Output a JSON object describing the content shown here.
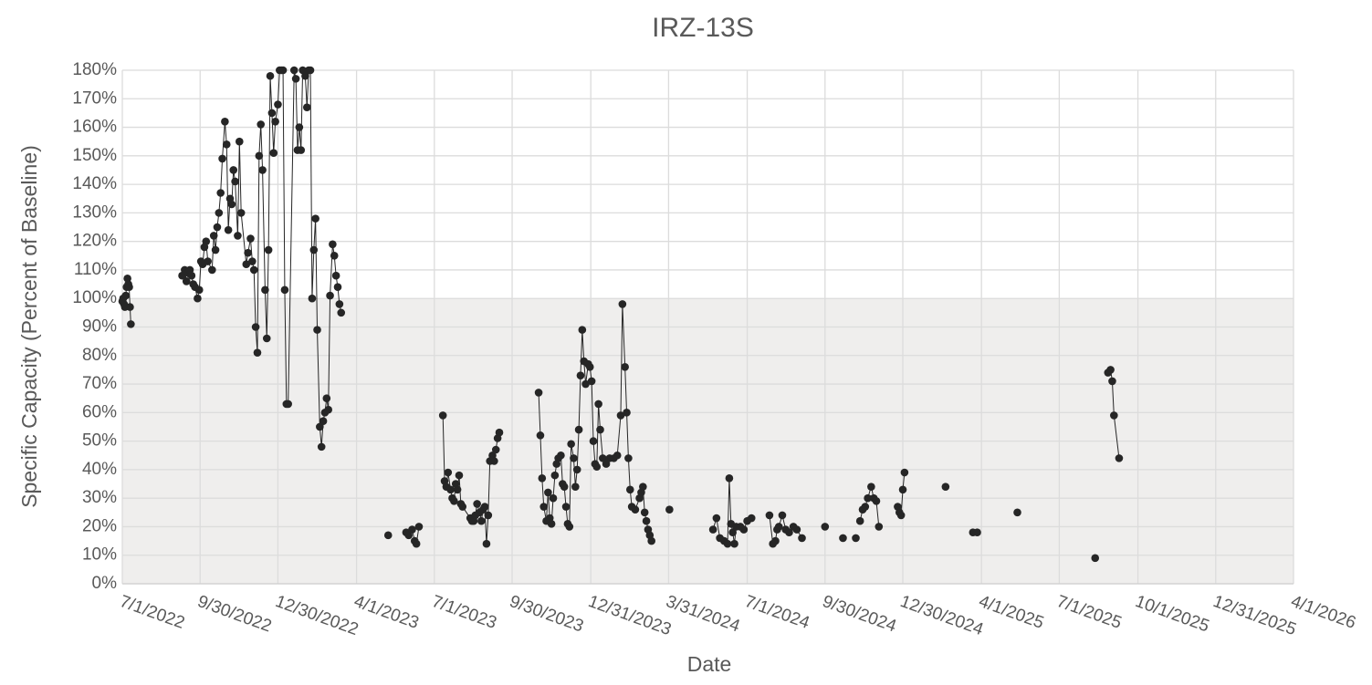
{
  "chart_data": {
    "type": "scatter-line",
    "title": "IRZ-13S",
    "xlabel": "Date",
    "ylabel": "Specific Capacity (Percent of Baseline)",
    "color": "#262626",
    "grid": true,
    "band": {
      "from": 0,
      "to": 100,
      "color": "#efeeed"
    },
    "xlim": [
      "2022-07-01",
      "2026-04-01"
    ],
    "xticks": [
      {
        "value": "2022-07-01",
        "label": "7/1/2022"
      },
      {
        "value": "2022-09-30",
        "label": "9/30/2022"
      },
      {
        "value": "2022-12-30",
        "label": "12/30/2022"
      },
      {
        "value": "2023-04-01",
        "label": "4/1/2023"
      },
      {
        "value": "2023-07-01",
        "label": "7/1/2023"
      },
      {
        "value": "2023-09-30",
        "label": "9/30/2023"
      },
      {
        "value": "2023-12-31",
        "label": "12/31/2023"
      },
      {
        "value": "2024-03-31",
        "label": "3/31/2024"
      },
      {
        "value": "2024-07-01",
        "label": "7/1/2024"
      },
      {
        "value": "2024-09-30",
        "label": "9/30/2024"
      },
      {
        "value": "2024-12-30",
        "label": "12/30/2024"
      },
      {
        "value": "2025-04-01",
        "label": "4/1/2025"
      },
      {
        "value": "2025-07-01",
        "label": "7/1/2025"
      },
      {
        "value": "2025-10-01",
        "label": "10/1/2025"
      },
      {
        "value": "2025-12-31",
        "label": "12/31/2025"
      },
      {
        "value": "2026-04-01",
        "label": "4/1/2026"
      }
    ],
    "ylim": [
      0,
      180
    ],
    "yticks": [
      {
        "value": 0,
        "label": "0%"
      },
      {
        "value": 10,
        "label": "10%"
      },
      {
        "value": 20,
        "label": "20%"
      },
      {
        "value": 30,
        "label": "30%"
      },
      {
        "value": 40,
        "label": "40%"
      },
      {
        "value": 50,
        "label": "50%"
      },
      {
        "value": 60,
        "label": "60%"
      },
      {
        "value": 70,
        "label": "70%"
      },
      {
        "value": 80,
        "label": "80%"
      },
      {
        "value": 90,
        "label": "90%"
      },
      {
        "value": 100,
        "label": "100%"
      },
      {
        "value": 110,
        "label": "110%"
      },
      {
        "value": 120,
        "label": "120%"
      },
      {
        "value": 130,
        "label": "130%"
      },
      {
        "value": 140,
        "label": "140%"
      },
      {
        "value": 150,
        "label": "150%"
      },
      {
        "value": 160,
        "label": "160%"
      },
      {
        "value": 170,
        "label": "170%"
      },
      {
        "value": 180,
        "label": "180%"
      }
    ],
    "x": [
      "2022-07-01",
      "2022-07-02",
      "2022-07-03",
      "2022-07-04",
      "2022-07-05",
      "2022-07-06",
      "2022-07-07",
      "2022-07-08",
      "2022-07-09",
      "2022-07-10",
      "2022-07-11",
      null,
      "2022-09-09",
      "2022-09-12",
      "2022-09-14",
      "2022-09-16",
      "2022-09-18",
      "2022-09-20",
      "2022-09-22",
      "2022-09-24",
      "2022-09-27",
      "2022-09-29",
      "2022-10-01",
      "2022-10-03",
      "2022-10-05",
      "2022-10-07",
      "2022-10-09",
      "2022-10-14",
      "2022-10-16",
      "2022-10-18",
      "2022-10-20",
      "2022-10-22",
      "2022-10-24",
      "2022-10-26",
      "2022-10-29",
      "2022-10-31",
      "2022-11-02",
      "2022-11-04",
      "2022-11-06",
      "2022-11-08",
      "2022-11-10",
      "2022-11-13",
      "2022-11-15",
      "2022-11-17",
      "2022-11-23",
      "2022-11-25",
      "2022-11-28",
      "2022-11-30",
      "2022-12-02",
      "2022-12-04",
      "2022-12-06",
      "2022-12-08",
      "2022-12-10",
      "2022-12-12",
      "2022-12-15",
      "2022-12-17",
      "2022-12-19",
      "2022-12-21",
      "2022-12-23",
      "2022-12-25",
      "2022-12-27",
      "2022-12-30",
      "2023-01-01",
      "2023-01-03",
      "2023-01-05",
      "2023-01-07",
      "2023-01-09",
      "2023-01-11",
      "2023-01-18",
      "2023-01-20",
      "2023-01-22",
      "2023-01-24",
      "2023-01-26",
      "2023-01-28",
      "2023-01-31",
      "2023-02-02",
      "2023-02-04",
      "2023-02-06",
      "2023-02-08",
      "2023-02-10",
      "2023-02-12",
      "2023-02-14",
      "2023-02-17",
      "2023-02-19",
      "2023-02-21",
      "2023-02-23",
      "2023-02-25",
      "2023-02-27",
      "2023-03-01",
      "2023-03-04",
      "2023-03-06",
      "2023-03-08",
      "2023-03-10",
      "2023-03-12",
      "2023-03-14",
      null,
      "2023-05-08",
      null,
      "2023-05-29",
      "2023-06-01",
      "2023-06-05",
      "2023-06-08",
      "2023-06-10",
      "2023-06-13",
      null,
      "2023-07-11",
      "2023-07-13",
      "2023-07-15",
      "2023-07-17",
      "2023-07-20",
      "2023-07-22",
      "2023-07-24",
      "2023-07-26",
      "2023-07-28",
      "2023-07-30",
      "2023-08-01",
      "2023-08-03",
      "2023-08-12",
      "2023-08-14",
      "2023-08-16",
      "2023-08-18",
      "2023-08-20",
      "2023-08-23",
      "2023-08-25",
      "2023-08-27",
      "2023-08-29",
      "2023-08-31",
      "2023-09-02",
      "2023-09-04",
      "2023-09-07",
      "2023-09-09",
      "2023-09-11",
      "2023-09-13",
      "2023-09-15",
      null,
      "2023-10-31",
      "2023-11-02",
      "2023-11-04",
      "2023-11-06",
      "2023-11-09",
      "2023-11-11",
      "2023-11-13",
      "2023-11-15",
      "2023-11-17",
      "2023-11-19",
      "2023-11-21",
      "2023-11-23",
      "2023-11-26",
      "2023-11-28",
      "2023-11-30",
      "2023-12-02",
      "2023-12-04",
      "2023-12-06",
      "2023-12-08",
      "2023-12-11",
      "2023-12-13",
      "2023-12-15",
      "2023-12-17",
      "2023-12-19",
      "2023-12-21",
      "2023-12-23",
      "2023-12-25",
      "2023-12-28",
      "2023-12-30",
      "2024-01-01",
      "2024-01-03",
      "2024-01-05",
      "2024-01-07",
      "2024-01-09",
      "2024-01-11",
      "2024-01-14",
      "2024-01-18",
      "2024-01-22",
      "2024-01-27",
      "2024-01-31",
      "2024-02-04",
      "2024-02-06",
      "2024-02-09",
      "2024-02-11",
      "2024-02-13",
      "2024-02-15",
      "2024-02-17",
      "2024-02-21",
      "2024-02-26",
      "2024-02-28",
      "2024-03-01",
      "2024-03-03",
      "2024-03-05",
      "2024-03-07",
      "2024-03-09",
      "2024-03-11",
      null,
      "2024-04-01",
      null,
      "2024-05-22",
      "2024-05-26",
      "2024-05-30",
      "2024-06-04",
      "2024-06-08",
      "2024-06-10",
      "2024-06-12",
      "2024-06-14",
      "2024-06-16",
      "2024-06-18",
      "2024-06-23",
      "2024-06-27",
      "2024-07-01",
      "2024-07-06",
      null,
      "2024-07-27",
      "2024-07-31",
      "2024-08-03",
      "2024-08-05",
      "2024-08-07",
      "2024-08-11",
      "2024-08-15",
      "2024-08-19",
      "2024-08-24",
      "2024-08-28",
      "2024-09-03",
      null,
      "2024-09-30",
      null,
      "2024-10-21",
      null,
      "2024-11-05",
      null,
      "2024-11-10",
      "2024-11-13",
      "2024-11-16",
      "2024-11-19",
      "2024-11-23",
      "2024-11-26",
      "2024-11-29",
      "2024-12-02",
      null,
      "2024-12-24",
      "2024-12-26",
      "2024-12-28",
      "2024-12-30",
      "2025-01-01",
      null,
      "2025-02-18",
      null,
      "2025-03-22",
      "2025-03-27",
      null,
      "2025-05-13",
      null,
      "2025-08-12",
      null,
      "2025-08-27",
      "2025-08-30",
      "2025-09-01",
      "2025-09-03",
      "2025-09-09"
    ],
    "values": [
      99,
      100,
      98,
      97,
      101,
      104,
      107,
      105,
      104,
      97,
      91,
      null,
      108,
      110,
      106,
      109,
      110,
      108,
      105,
      104,
      100,
      103,
      113,
      112,
      118,
      120,
      113,
      110,
      122,
      117,
      125,
      130,
      137,
      149,
      162,
      154,
      124,
      135,
      133,
      145,
      141,
      122,
      155,
      130,
      112,
      116,
      121,
      113,
      110,
      90,
      81,
      150,
      161,
      145,
      103,
      86,
      117,
      178,
      165,
      151,
      162,
      168,
      180,
      180,
      180,
      103,
      63,
      63,
      180,
      177,
      152,
      160,
      152,
      180,
      178,
      167,
      180,
      180,
      100,
      117,
      128,
      89,
      55,
      48,
      57,
      60,
      65,
      61,
      101,
      119,
      115,
      108,
      104,
      98,
      95,
      null,
      17,
      null,
      18,
      17,
      19,
      15,
      14,
      20,
      null,
      59,
      36,
      34,
      39,
      33,
      30,
      29,
      35,
      33,
      38,
      28,
      27,
      23,
      22,
      22,
      24,
      28,
      25,
      22,
      26,
      27,
      14,
      24,
      43,
      45,
      43,
      47,
      51,
      53,
      null,
      67,
      52,
      37,
      27,
      22,
      32,
      23,
      21,
      30,
      38,
      42,
      44,
      45,
      35,
      34,
      27,
      21,
      20,
      49,
      44,
      34,
      40,
      54,
      73,
      89,
      78,
      70,
      77,
      76,
      71,
      50,
      42,
      41,
      63,
      54,
      44,
      42,
      44,
      44,
      45,
      59,
      98,
      76,
      60,
      44,
      33,
      27,
      26,
      30,
      32,
      34,
      25,
      22,
      19,
      17,
      15,
      null,
      26,
      null,
      19,
      23,
      16,
      15,
      14,
      37,
      21,
      18,
      14,
      20,
      20,
      19,
      22,
      23,
      null,
      24,
      14,
      15,
      19,
      20,
      24,
      19,
      18,
      20,
      19,
      16,
      null,
      20,
      null,
      16,
      null,
      16,
      null,
      22,
      26,
      27,
      30,
      34,
      30,
      29,
      20,
      null,
      27,
      25,
      24,
      33,
      39,
      null,
      34,
      null,
      18,
      18,
      null,
      25,
      null,
      9,
      null,
      74,
      75,
      71,
      59,
      44
    ]
  }
}
